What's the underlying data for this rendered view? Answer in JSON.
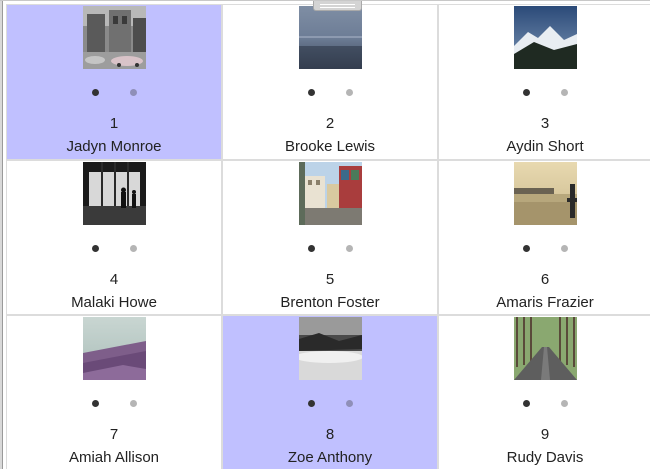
{
  "cards": [
    {
      "number": "1",
      "name": "Jadyn Monroe",
      "selected": true,
      "thumbnail": "street-photo"
    },
    {
      "number": "2",
      "name": "Brooke Lewis",
      "selected": false,
      "thumbnail": "sea-photo"
    },
    {
      "number": "3",
      "name": "Aydin Short",
      "selected": false,
      "thumbnail": "mountain-photo"
    },
    {
      "number": "4",
      "name": "Malaki Howe",
      "selected": false,
      "thumbnail": "window-silhouette-photo"
    },
    {
      "number": "5",
      "name": "Brenton Foster",
      "selected": false,
      "thumbnail": "town-street-photo"
    },
    {
      "number": "6",
      "name": "Amaris Frazier",
      "selected": false,
      "thumbnail": "harbor-photo"
    },
    {
      "number": "7",
      "name": "Amiah Allison",
      "selected": false,
      "thumbnail": "coast-photo"
    },
    {
      "number": "8",
      "name": "Zoe Anthony",
      "selected": true,
      "thumbnail": "fog-photo"
    },
    {
      "number": "9",
      "name": "Rudy Davis",
      "selected": false,
      "thumbnail": "tree-road-photo"
    }
  ],
  "colors": {
    "selected_background": "#c0c0ff",
    "active_dot": "#333333",
    "inactive_dot": "#b5b5b5"
  }
}
